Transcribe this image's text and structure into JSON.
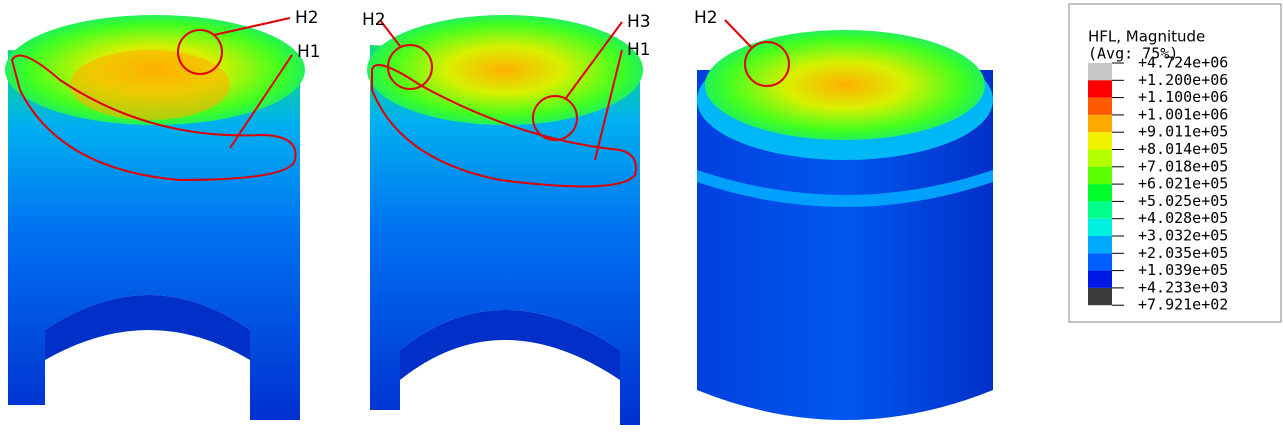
{
  "annotations": [
    "H2",
    "H1",
    "H2",
    "H3",
    "H1",
    "H2"
  ],
  "legend": {
    "title": "HFL, Magnitude",
    "subtitle": "(Avg: 75%)",
    "labels": [
      "+4.724e+06",
      "+1.200e+06",
      "+1.100e+06",
      "+1.001e+06",
      "+9.011e+05",
      "+8.014e+05",
      "+7.018e+05",
      "+6.021e+05",
      "+5.025e+05",
      "+4.028e+05",
      "+3.032e+05",
      "+2.035e+05",
      "+1.039e+05",
      "+4.233e+03",
      "+7.921e+02"
    ],
    "colors": [
      "#c8c8c8",
      "#ff0000",
      "#ff5a00",
      "#ffaa00",
      "#f2f200",
      "#b4ff00",
      "#5aff00",
      "#00ff2a",
      "#00ff8c",
      "#00f0e0",
      "#00aaff",
      "#0060ff",
      "#0018e6",
      "#3c3c3c"
    ]
  }
}
